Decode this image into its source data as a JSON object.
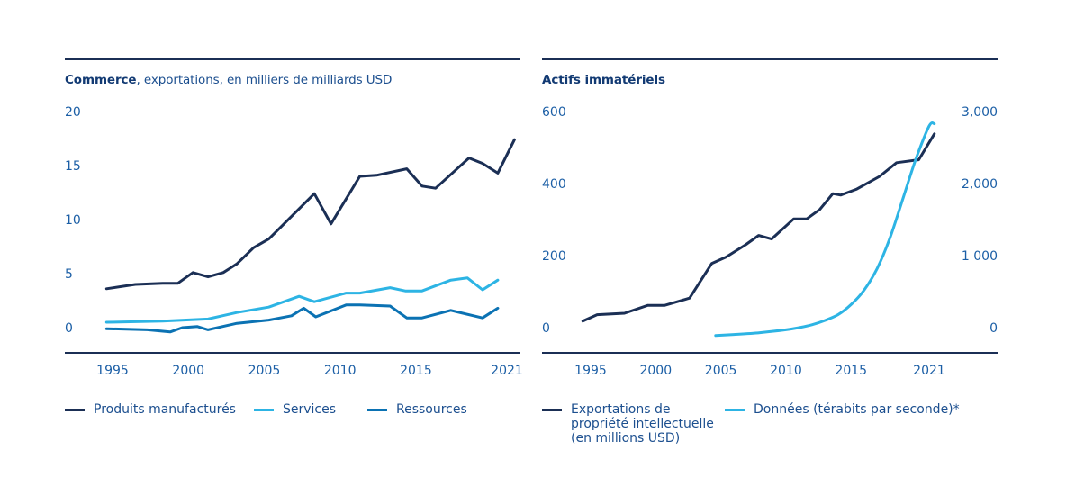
{
  "chart_data": [
    {
      "type": "line",
      "title_bold": "Commerce",
      "title_rest": ", exportations, en milliers de milliards USD",
      "xlabel": "",
      "ylabel": "",
      "ylim": [
        0,
        20
      ],
      "xlim": [
        1995,
        2021
      ],
      "x_ticks": [
        "1995",
        "2000",
        "2005",
        "2010",
        "2015",
        "2021"
      ],
      "y_ticks": [
        "0",
        "5",
        "10",
        "15",
        "20"
      ],
      "grid": false,
      "legend_position": "bottom",
      "series": [
        {
          "name": "Produits manufacturés",
          "color": "#1b2f55",
          "x": [
            1994.6,
            1996.5,
            1998.3,
            1999.3,
            2000.3,
            2001.3,
            2002.3,
            2003.2,
            2004.3,
            2005.3,
            2008.3,
            2009.4,
            2011.3,
            2012.4,
            2014.4,
            2015.4,
            2016.3,
            2018.5,
            2019.4,
            2020.4,
            2021.5
          ],
          "values": [
            3.6,
            4.0,
            4.1,
            4.1,
            5.1,
            4.7,
            5.1,
            5.9,
            7.4,
            8.2,
            12.4,
            9.6,
            14.0,
            14.1,
            14.7,
            13.1,
            12.9,
            15.7,
            15.2,
            14.3,
            17.4
          ]
        },
        {
          "name": "Services",
          "color": "#2db4e4",
          "x": [
            1994.6,
            1998.3,
            2001.3,
            2003.2,
            2005.3,
            2007.3,
            2008.3,
            2010.4,
            2011.3,
            2013.3,
            2014.3,
            2015.4,
            2017.3,
            2018.4,
            2019.4,
            2020.4
          ],
          "values": [
            0.5,
            0.6,
            0.8,
            1.4,
            1.9,
            2.9,
            2.4,
            3.2,
            3.2,
            3.7,
            3.4,
            3.4,
            4.4,
            4.6,
            3.5,
            4.4
          ]
        },
        {
          "name": "Ressources",
          "color": "#0b72b3",
          "x": [
            1994.6,
            1997.3,
            1998.8,
            1999.6,
            2000.6,
            2001.3,
            2003.2,
            2005.3,
            2006.8,
            2007.6,
            2008.4,
            2010.4,
            2011.3,
            2013.3,
            2014.4,
            2015.4,
            2017.3,
            2019.4,
            2020.4
          ],
          "values": [
            -0.1,
            -0.2,
            -0.4,
            0.0,
            0.1,
            -0.2,
            0.4,
            0.7,
            1.1,
            1.8,
            1.0,
            2.1,
            2.1,
            2.0,
            0.9,
            0.9,
            1.6,
            0.9,
            1.8
          ]
        }
      ]
    },
    {
      "type": "line",
      "title_bold": "Actifs immatériels",
      "title_rest": "",
      "xlabel": "",
      "ylabel": "",
      "ylim": [
        0,
        600
      ],
      "ylim_right": [
        0,
        3000
      ],
      "xlim": [
        1995,
        2021
      ],
      "x_ticks": [
        "1995",
        "2000",
        "2005",
        "2010",
        "2015",
        "2021"
      ],
      "y_ticks": [
        "0",
        "200",
        "400",
        "600"
      ],
      "y_ticks_right": [
        "0",
        "1 000",
        "2,000",
        "3,000"
      ],
      "grid": false,
      "legend_position": "bottom",
      "series": [
        {
          "name": "Exportations de propriété intellectuelle (en millions USD)",
          "color": "#1b2f55",
          "axis": "left",
          "x": [
            1994.4,
            1995.5,
            1997.6,
            1999.4,
            2000.7,
            2002.6,
            2004.3,
            2005.4,
            2006.9,
            2007.9,
            2008.9,
            2010.6,
            2011.6,
            2012.6,
            2013.6,
            2014.2,
            2015.4,
            2017.2,
            2018.5,
            2020.2,
            2021.4
          ],
          "values": [
            18,
            36,
            40,
            62,
            62,
            82,
            178,
            196,
            230,
            256,
            246,
            302,
            302,
            328,
            372,
            368,
            384,
            420,
            458,
            466,
            538
          ]
        },
        {
          "name": "Données (térabits par seconde)*",
          "color": "#2db4e4",
          "axis": "right",
          "x": [
            2004.6,
            2006,
            2008,
            2010,
            2011,
            2012,
            2013,
            2014,
            2015,
            2016,
            2017,
            2018,
            2019,
            2020,
            2021,
            2021.4
          ],
          "values": [
            -110,
            -95,
            -70,
            -30,
            0,
            40,
            100,
            180,
            320,
            520,
            820,
            1250,
            1800,
            2350,
            2800,
            2830
          ]
        }
      ]
    }
  ]
}
